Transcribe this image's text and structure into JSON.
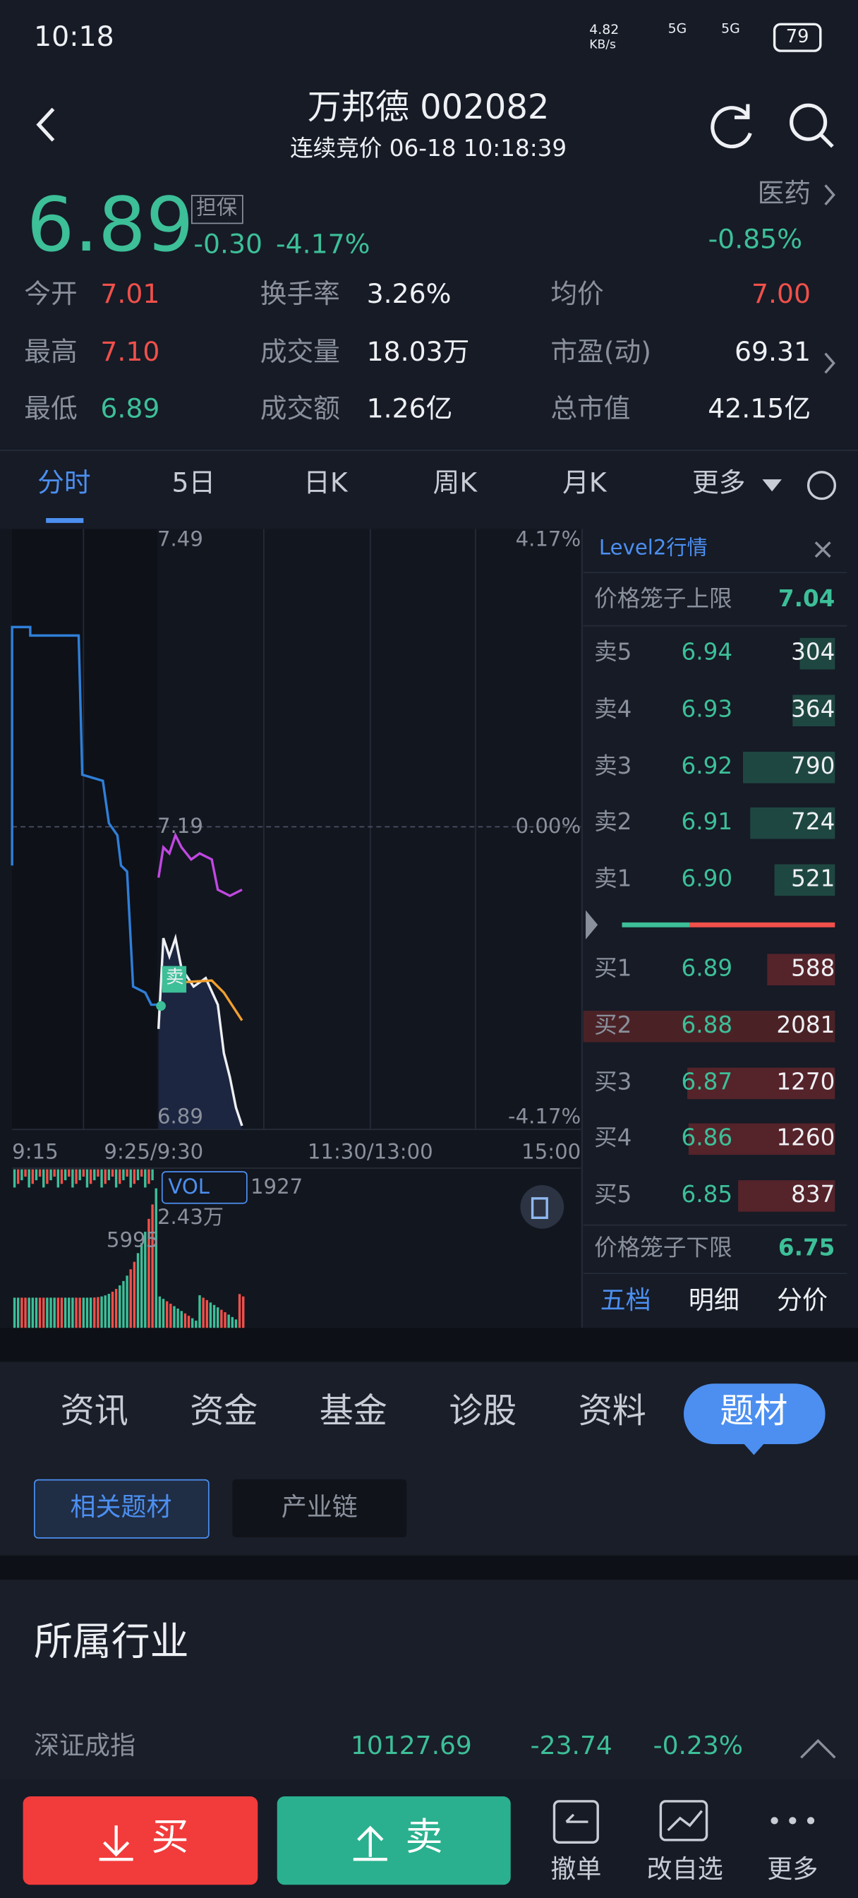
{
  "status": {
    "time": "10:18",
    "speed": "4.82",
    "speed_unit": "KB/s",
    "sim1": "5G",
    "sim2": "5G",
    "battery": "79"
  },
  "header": {
    "title": "万邦德 002082",
    "subtitle": "连续竞价 06-18 10:18:39"
  },
  "quote": {
    "price": "6.89",
    "tag": "担保",
    "change": "-0.30",
    "change_pct": "-4.17%",
    "sector": "医药",
    "sector_pct": "-0.85%"
  },
  "stats": [
    [
      {
        "label": "今开",
        "value": "7.01"
      },
      {
        "label": "换手率",
        "value": "3.26%"
      },
      {
        "label": "均价",
        "value": "7.00"
      }
    ],
    [
      {
        "label": "最高",
        "value": "7.10"
      },
      {
        "label": "成交量",
        "value": "18.03万"
      },
      {
        "label": "市盈(动)",
        "value": "69.31"
      }
    ],
    [
      {
        "label": "最低",
        "value": "6.89"
      },
      {
        "label": "成交额",
        "value": "1.26亿"
      },
      {
        "label": "总市值",
        "value": "42.15亿"
      }
    ]
  ],
  "tabs": [
    "分时",
    "5日",
    "日K",
    "周K",
    "月K",
    "更多"
  ],
  "chart": {
    "price_top": "7.49",
    "pct_top": "4.17%",
    "price_mid": "7.19",
    "pct_mid": "0.00%",
    "price_bottom": "6.89",
    "pct_bottom": "-4.17%",
    "times": [
      "9:15",
      "9:25/9:30",
      "11:30/13:00",
      "15:00"
    ],
    "signal": "卖",
    "vol_label": "VOL",
    "vol_value": "1927",
    "vol_max": "2.43万",
    "vol_mark": "5995"
  },
  "level2": {
    "title": "Level2行情",
    "upper_label": "价格笼子上限",
    "upper": "7.04",
    "asks": [
      {
        "label": "卖5",
        "price": "6.94",
        "volume": "304"
      },
      {
        "label": "卖4",
        "price": "6.93",
        "volume": "364"
      },
      {
        "label": "卖3",
        "price": "6.92",
        "volume": "790"
      },
      {
        "label": "卖2",
        "price": "6.91",
        "volume": "724"
      },
      {
        "label": "卖1",
        "price": "6.90",
        "volume": "521"
      }
    ],
    "bids": [
      {
        "label": "买1",
        "price": "6.89",
        "volume": "588"
      },
      {
        "label": "买2",
        "price": "6.88",
        "volume": "2081"
      },
      {
        "label": "买3",
        "price": "6.87",
        "volume": "1270"
      },
      {
        "label": "买4",
        "price": "6.86",
        "volume": "1260"
      },
      {
        "label": "买5",
        "price": "6.85",
        "volume": "837"
      }
    ],
    "lower_label": "价格笼子下限",
    "lower": "6.75",
    "tabs": [
      "五档",
      "明细",
      "分价"
    ]
  },
  "info_tabs": [
    "资讯",
    "资金",
    "基金",
    "诊股",
    "资料",
    "题材"
  ],
  "sub_tabs": [
    "相关题材",
    "产业链"
  ],
  "section": {
    "title": "所属行业",
    "index": {
      "name": "深证成指",
      "value": "10127.69",
      "change": "-23.74",
      "pct": "-0.23%"
    }
  },
  "actions": {
    "buy": "买",
    "sell": "卖",
    "tools": [
      "撤单",
      "改自选",
      "更多"
    ]
  }
}
